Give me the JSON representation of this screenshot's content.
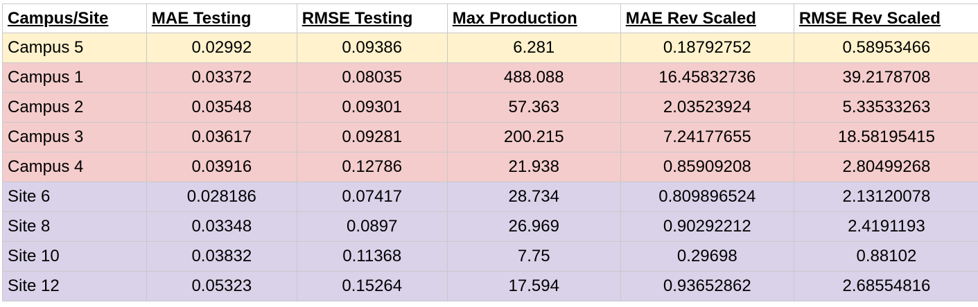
{
  "colors": {
    "campus5_row": "#fff2cc",
    "campus_rows": "#f4cccc",
    "site_rows": "#d9d2e9",
    "grid_line": "#c9c9c9"
  },
  "table": {
    "headers": [
      "Campus/Site",
      "MAE Testing",
      "RMSE Testing",
      "Max Production",
      "MAE Rev Scaled",
      "RMSE Rev Scaled"
    ],
    "rows": [
      {
        "group": "yellow",
        "cells": [
          "Campus 5",
          "0.02992",
          "0.09386",
          "6.281",
          "0.18792752",
          "0.58953466"
        ]
      },
      {
        "group": "red",
        "cells": [
          "Campus 1",
          "0.03372",
          "0.08035",
          "488.088",
          "16.45832736",
          "39.2178708"
        ]
      },
      {
        "group": "red",
        "cells": [
          "Campus 2",
          "0.03548",
          "0.09301",
          "57.363",
          "2.03523924",
          "5.33533263"
        ]
      },
      {
        "group": "red",
        "cells": [
          "Campus 3",
          "0.03617",
          "0.09281",
          "200.215",
          "7.24177655",
          "18.58195415"
        ]
      },
      {
        "group": "red",
        "cells": [
          "Campus 4",
          "0.03916",
          "0.12786",
          "21.938",
          "0.85909208",
          "2.80499268"
        ]
      },
      {
        "group": "purple",
        "cells": [
          "Site 6",
          "0.028186",
          "0.07417",
          "28.734",
          "0.809896524",
          "2.13120078"
        ]
      },
      {
        "group": "purple",
        "cells": [
          "Site 8",
          "0.03348",
          "0.0897",
          "26.969",
          "0.90292212",
          "2.4191193"
        ]
      },
      {
        "group": "purple",
        "cells": [
          "Site 10",
          "0.03832",
          "0.11368",
          "7.75",
          "0.29698",
          "0.88102"
        ]
      },
      {
        "group": "purple",
        "cells": [
          "Site 12",
          "0.05323",
          "0.15264",
          "17.594",
          "0.93652862",
          "2.68554816"
        ]
      }
    ]
  }
}
